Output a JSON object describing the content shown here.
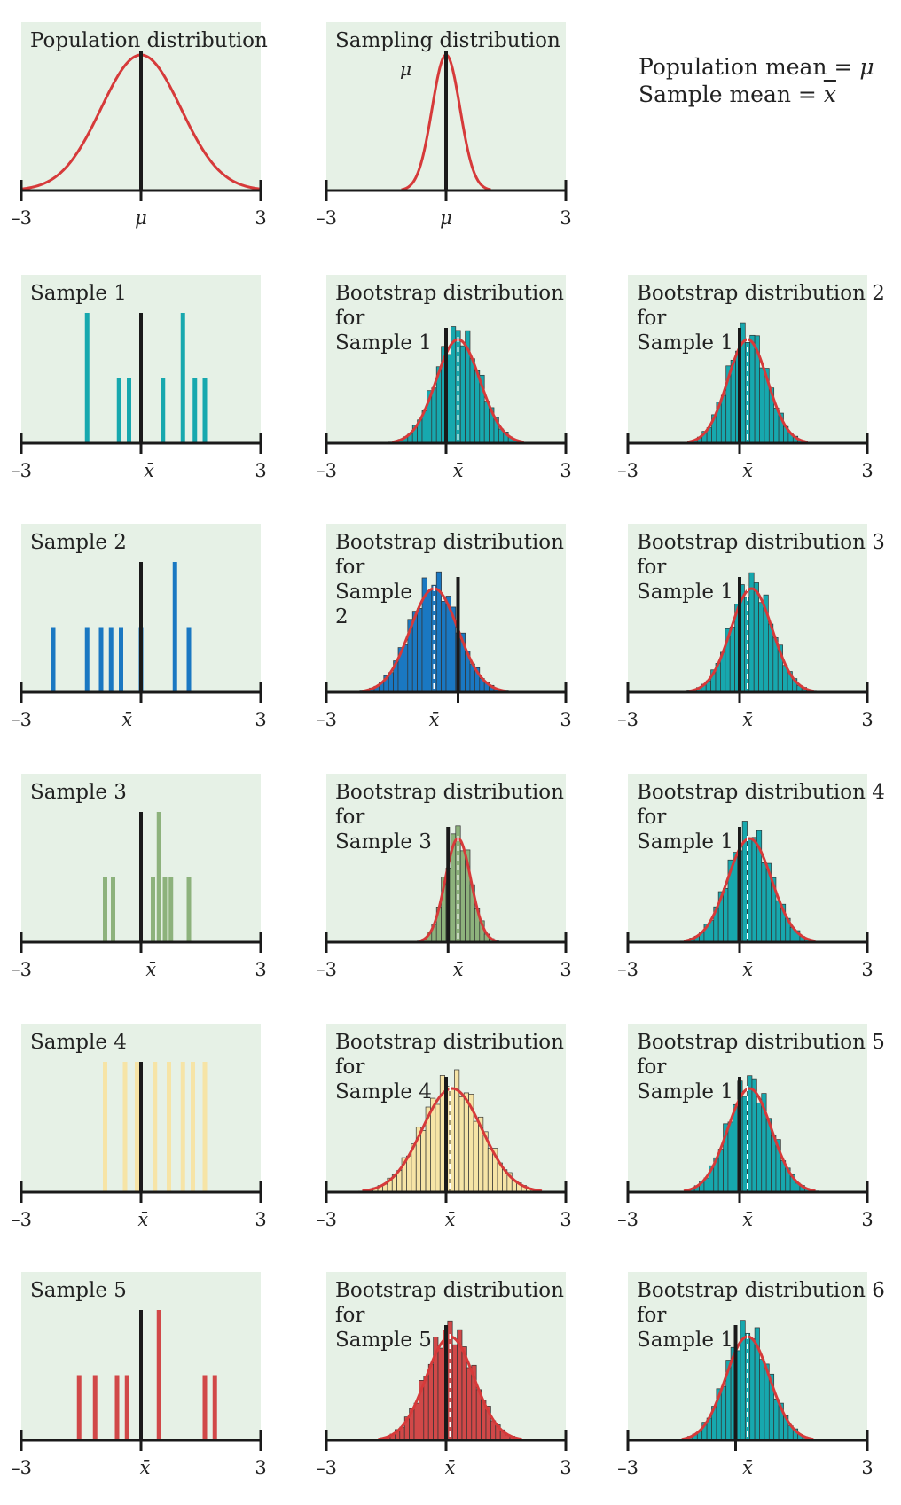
{
  "legend": {
    "line1_text": "Population mean = ",
    "line1_symbol": "μ",
    "line2_text": "Sample mean = ",
    "line2_symbol": "x"
  },
  "chart_data": [
    {
      "type": "line",
      "title": "Population distribution",
      "row": 0,
      "col": 0,
      "dist": {
        "mean": 0,
        "sd": 1
      },
      "xlim": [
        -3,
        3
      ],
      "ref_label": "μ",
      "ref_line": 0,
      "tick_labels": [
        "–3",
        "3"
      ],
      "color": "#d63a3a"
    },
    {
      "type": "line",
      "title": "Sampling distribution",
      "row": 0,
      "col": 1,
      "dist": {
        "mean": 0,
        "sd": 0.35
      },
      "xlim": [
        -3,
        3
      ],
      "ref_label": "μ",
      "ref_line": 0,
      "annotation": "μ",
      "tick_labels": [
        "–3",
        "3"
      ],
      "color": "#d63a3a"
    },
    {
      "type": "bar",
      "title": "Sample 1",
      "row": 1,
      "col": 0,
      "xlim": [
        -3,
        3
      ],
      "ref_line": 0,
      "ref_label": "x̄",
      "xbar": 0.2,
      "tick_labels": [
        "–3",
        "3"
      ],
      "color": "#17a8ae",
      "x": [
        -1.35,
        -0.55,
        -0.3,
        0.55,
        1.05,
        1.35,
        1.6
      ],
      "values": [
        2,
        1,
        1,
        1,
        2,
        1,
        1
      ]
    },
    {
      "type": "bar",
      "title": "Bootstrap distribution for Sample 1",
      "title_lines": [
        "Bootstrap distribution",
        "for",
        "Sample 1"
      ],
      "row": 1,
      "col": 1,
      "xlim": [
        -3,
        3
      ],
      "ref_line": 0,
      "ref_label": "x̄",
      "xbar": 0.3,
      "tick_labels": [
        "–3",
        "3"
      ],
      "color": "#17a8ae",
      "hist": {
        "center": 0.3,
        "sd": 0.55
      },
      "curve": {
        "mean": 0.3,
        "sd": 0.55
      }
    },
    {
      "type": "bar",
      "title": "Bootstrap distribution 2 for Sample 1",
      "title_lines": [
        "Bootstrap distribution 2",
        "for",
        "Sample 1"
      ],
      "row": 1,
      "col": 2,
      "xlim": [
        -3,
        3
      ],
      "ref_line": -0.2,
      "ref_label": "x̄",
      "xbar": 0.0,
      "tick_labels": [
        "–3",
        "3"
      ],
      "color": "#17a8ae",
      "hist": {
        "center": 0.0,
        "sd": 0.5
      },
      "curve": {
        "mean": 0.0,
        "sd": 0.5
      }
    },
    {
      "type": "bar",
      "title": "Sample 2",
      "row": 2,
      "col": 0,
      "xlim": [
        -3,
        3
      ],
      "ref_line": 0,
      "ref_label": "x̄",
      "xbar": -0.35,
      "tick_labels": [
        "–3",
        "3"
      ],
      "color": "#1a78c2",
      "x": [
        -2.2,
        -1.35,
        -1.0,
        -0.75,
        -0.5,
        0.0,
        0.85,
        1.2
      ],
      "values": [
        1,
        1,
        1,
        1,
        1,
        1,
        2,
        1
      ]
    },
    {
      "type": "bar",
      "title": "Bootstrap distribution for Sample 2",
      "title_lines": [
        "Bootstrap distribution",
        "for",
        "Sample",
        "2"
      ],
      "row": 2,
      "col": 1,
      "xlim": [
        -3,
        3
      ],
      "ref_line": 0.3,
      "ref_label": "x̄",
      "xbar": -0.3,
      "tick_labels": [
        "–3",
        "3"
      ],
      "color": "#1a78c2",
      "hist": {
        "center": -0.3,
        "sd": 0.6
      },
      "curve": {
        "mean": -0.3,
        "sd": 0.6
      }
    },
    {
      "type": "bar",
      "title": "Bootstrap distribution 3 for Sample 1",
      "title_lines": [
        "Bootstrap distribution 3",
        "for",
        "Sample 1"
      ],
      "row": 2,
      "col": 2,
      "xlim": [
        -3,
        3
      ],
      "ref_line": -0.2,
      "ref_label": "x̄",
      "xbar": 0.0,
      "tick_labels": [
        "–3",
        "3"
      ],
      "color": "#17a8ae",
      "hist": {
        "center": 0.1,
        "sd": 0.52
      },
      "curve": {
        "mean": 0.1,
        "sd": 0.52
      }
    },
    {
      "type": "bar",
      "title": "Sample 3",
      "row": 3,
      "col": 0,
      "xlim": [
        -3,
        3
      ],
      "ref_line": 0,
      "ref_label": "x̄",
      "xbar": 0.25,
      "tick_labels": [
        "–3",
        "3"
      ],
      "color": "#8db27c",
      "x": [
        -0.9,
        -0.7,
        0.3,
        0.45,
        0.6,
        0.75,
        1.2
      ],
      "values": [
        1,
        1,
        1,
        2,
        1,
        1,
        1
      ]
    },
    {
      "type": "bar",
      "title": "Bootstrap distribution for Sample 3",
      "title_lines": [
        "Bootstrap distribution",
        "for",
        "Sample 3"
      ],
      "row": 3,
      "col": 1,
      "xlim": [
        -3,
        3
      ],
      "ref_line": 0.05,
      "ref_label": "x̄",
      "xbar": 0.3,
      "tick_labels": [
        "–3",
        "3"
      ],
      "color": "#8db27c",
      "hist": {
        "center": 0.3,
        "sd": 0.32
      },
      "curve": {
        "mean": 0.3,
        "sd": 0.32
      }
    },
    {
      "type": "bar",
      "title": "Bootstrap distribution 4 for Sample 1",
      "title_lines": [
        "Bootstrap distribution 4",
        "for",
        "Sample 1"
      ],
      "row": 3,
      "col": 2,
      "xlim": [
        -3,
        3
      ],
      "ref_line": -0.2,
      "ref_label": "x̄",
      "xbar": 0.0,
      "tick_labels": [
        "–3",
        "3"
      ],
      "color": "#17a8ae",
      "hist": {
        "center": 0.05,
        "sd": 0.55
      },
      "curve": {
        "mean": 0.05,
        "sd": 0.55
      }
    },
    {
      "type": "bar",
      "title": "Sample 4",
      "row": 4,
      "col": 0,
      "xlim": [
        -3,
        3
      ],
      "ref_line": 0,
      "ref_label": "x̄",
      "xbar": 0.05,
      "tick_labels": [
        "–3",
        "3"
      ],
      "color": "#f6e4a6",
      "x": [
        -0.9,
        -0.4,
        -0.1,
        0.35,
        0.7,
        1.05,
        1.3,
        1.6
      ],
      "values": [
        1,
        1,
        1,
        1,
        1,
        1,
        1,
        1
      ]
    },
    {
      "type": "bar",
      "title": "Bootstrap distribution for Sample 4",
      "title_lines": [
        "Bootstrap distribution",
        "for",
        "Sample 4"
      ],
      "row": 4,
      "col": 1,
      "xlim": [
        -3,
        3
      ],
      "ref_line": 0.0,
      "ref_label": "x̄",
      "xbar": 0.1,
      "tick_labels": [
        "–3",
        "3"
      ],
      "color": "#f6e4a6",
      "hist": {
        "center": 0.15,
        "sd": 0.75
      },
      "curve": {
        "mean": 0.15,
        "sd": 0.75
      }
    },
    {
      "type": "bar",
      "title": "Bootstrap distribution 5 for Sample 1",
      "title_lines": [
        "Bootstrap distribution 5",
        "for",
        "Sample 1"
      ],
      "row": 4,
      "col": 2,
      "xlim": [
        -3,
        3
      ],
      "ref_line": -0.2,
      "ref_label": "x̄",
      "xbar": 0.0,
      "tick_labels": [
        "–3",
        "3"
      ],
      "color": "#17a8ae",
      "hist": {
        "center": 0.05,
        "sd": 0.55
      },
      "curve": {
        "mean": 0.05,
        "sd": 0.55
      }
    },
    {
      "type": "bar",
      "title": "Sample 5",
      "row": 5,
      "col": 0,
      "xlim": [
        -3,
        3
      ],
      "ref_line": 0,
      "ref_label": "x̄",
      "xbar": 0.1,
      "tick_labels": [
        "–3",
        "3"
      ],
      "color": "#d14848",
      "x": [
        -1.55,
        -1.15,
        -0.6,
        -0.35,
        0.45,
        1.6,
        1.85
      ],
      "values": [
        1,
        1,
        1,
        1,
        2,
        1,
        1
      ]
    },
    {
      "type": "bar",
      "title": "Bootstrap distribution for Sample 5",
      "title_lines": [
        "Bootstrap distribution",
        "for",
        "Sample 5"
      ],
      "row": 5,
      "col": 1,
      "xlim": [
        -3,
        3
      ],
      "ref_line": 0.0,
      "ref_label": "x̄",
      "xbar": 0.1,
      "tick_labels": [
        "–3",
        "3"
      ],
      "color": "#d14848",
      "hist": {
        "center": 0.1,
        "sd": 0.6
      },
      "curve": {
        "mean": 0.1,
        "sd": 0.6
      }
    },
    {
      "type": "bar",
      "title": "Bootstrap distribution 6 for Sample 1",
      "title_lines": [
        "Bootstrap distribution 6",
        "for",
        "Sample 1"
      ],
      "row": 5,
      "col": 2,
      "xlim": [
        -3,
        3
      ],
      "ref_line": -0.3,
      "ref_label": "x̄",
      "xbar": 0.0,
      "tick_labels": [
        "–3",
        "3"
      ],
      "color": "#17a8ae",
      "hist": {
        "center": 0.0,
        "sd": 0.55
      },
      "curve": {
        "mean": 0.0,
        "sd": 0.55
      }
    }
  ]
}
